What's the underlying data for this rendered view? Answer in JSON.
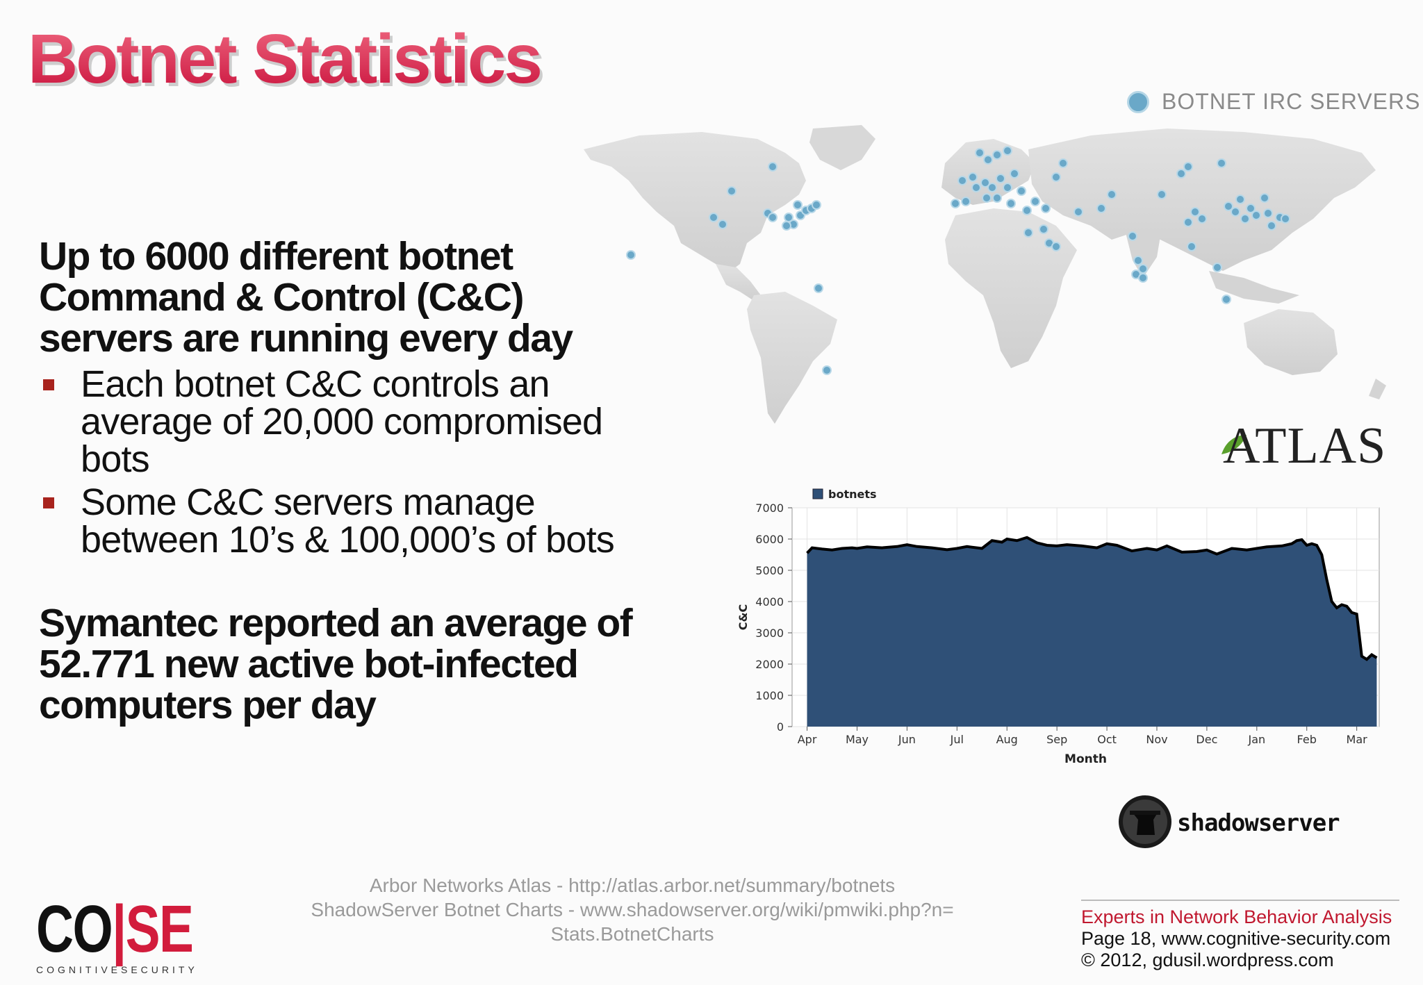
{
  "slide": {
    "title": "Botnet Statistics",
    "heading1": "Up to 6000 different botnet Command & Control (C&C) servers are running every day",
    "bullets": [
      "Each botnet C&C controls an average of 20,000 compromised bots",
      "Some C&C servers manage between 10’s & 100,000’s of bots"
    ],
    "heading2": "Symantec reported an average of 52.771 new active bot-infected computers per day"
  },
  "map": {
    "legend": "BOTNET IRC SERVERS",
    "brand": "ATLAS",
    "marker_color": "#6aa8c8"
  },
  "chart_data": {
    "type": "area",
    "legend": [
      "botnets"
    ],
    "ylabel": "C&C",
    "xlabel": "Month",
    "ylim": [
      0,
      7000
    ],
    "yticks": [
      0,
      1000,
      2000,
      3000,
      4000,
      5000,
      6000,
      7000
    ],
    "categories": [
      "Apr",
      "May",
      "Jun",
      "Jul",
      "Aug",
      "Sep",
      "Oct",
      "Nov",
      "Dec",
      "Jan",
      "Feb",
      "Mar"
    ],
    "series": [
      {
        "name": "botnets",
        "color": "#2f5077",
        "x": [
          0,
          0.1,
          0.3,
          0.5,
          0.7,
          0.9,
          1.0,
          1.2,
          1.5,
          1.8,
          2.0,
          2.2,
          2.5,
          2.8,
          3.0,
          3.2,
          3.5,
          3.7,
          3.9,
          4.0,
          4.2,
          4.4,
          4.6,
          4.8,
          5.0,
          5.2,
          5.5,
          5.8,
          6.0,
          6.2,
          6.5,
          6.8,
          7.0,
          7.2,
          7.5,
          7.8,
          8.0,
          8.2,
          8.5,
          8.8,
          9.0,
          9.2,
          9.5,
          9.7,
          9.8,
          9.9,
          10.0,
          10.1,
          10.2,
          10.3,
          10.4,
          10.5,
          10.6,
          10.7,
          10.8,
          10.9,
          11.0,
          11.1,
          11.2,
          11.3,
          11.4
        ],
        "values": [
          5550,
          5720,
          5680,
          5650,
          5700,
          5720,
          5700,
          5750,
          5720,
          5760,
          5820,
          5760,
          5720,
          5660,
          5700,
          5760,
          5700,
          5950,
          5900,
          6000,
          5950,
          6050,
          5880,
          5800,
          5780,
          5820,
          5780,
          5720,
          5850,
          5800,
          5620,
          5700,
          5650,
          5780,
          5580,
          5600,
          5650,
          5520,
          5700,
          5650,
          5700,
          5750,
          5780,
          5850,
          5950,
          5980,
          5800,
          5850,
          5800,
          5500,
          4700,
          4000,
          3800,
          3900,
          3850,
          3650,
          3600,
          2250,
          2150,
          2300,
          2200
        ]
      }
    ]
  },
  "shadowserver": {
    "brand": "shadowserver"
  },
  "sources": [
    "Arbor Networks Atlas - http://atlas.arbor.net/summary/botnets",
    "ShadowServer Botnet Charts - www.shadowserver.org/wiki/pmwiki.php?n=",
    "Stats.BotnetCharts"
  ],
  "logo": {
    "co": "CO",
    "divider": "|",
    "se": "SE",
    "subtitle": "COGNITIVESECURITY"
  },
  "footer": {
    "tagline": "Experts in Network Behavior Analysis",
    "page": "Page 18, www.cognitive-security.com",
    "copyright": "© 2012, gdusil.wordpress.com"
  }
}
